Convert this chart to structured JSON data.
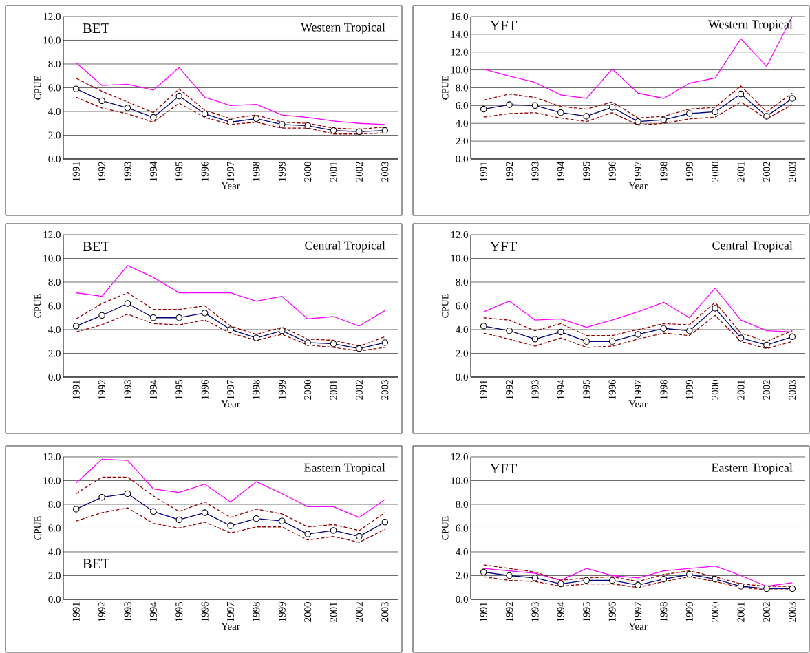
{
  "chart_data": [
    {
      "type": "line",
      "categories": [
        "1991",
        "1992",
        "1993",
        "1994",
        "1995",
        "1996",
        "1997",
        "1998",
        "1999",
        "2000",
        "2001",
        "2002",
        "2003"
      ],
      "xlabel": "Year",
      "ylabel": "CPUE",
      "ylim": [
        0,
        12
      ],
      "yticks": [
        {
          "value": 0,
          "label": "0.0"
        },
        {
          "value": 2,
          "label": "2.0"
        },
        {
          "value": 4,
          "label": "4.0"
        },
        {
          "value": 6,
          "label": "6.0"
        },
        {
          "value": 8,
          "label": "8.0"
        },
        {
          "value": 10,
          "label": "10.0"
        },
        {
          "value": 12,
          "label": "12.0"
        }
      ],
      "grid": "y",
      "annotations": [
        "BET",
        "Western Tropical"
      ],
      "series": [
        {
          "color": "#ff00ff",
          "line_style": "solid",
          "marker": "none",
          "values": [
            8.1,
            6.2,
            6.3,
            5.8,
            7.7,
            5.2,
            4.5,
            4.6,
            3.7,
            3.5,
            3.2,
            3.0,
            2.9
          ]
        },
        {
          "color": "#990000",
          "line_style": "dashed",
          "marker": "none",
          "values": [
            6.8,
            5.7,
            4.8,
            3.9,
            5.9,
            4.1,
            3.4,
            3.7,
            3.1,
            3.0,
            2.6,
            2.5,
            2.7
          ]
        },
        {
          "color": "#990000",
          "line_style": "dashed",
          "marker": "none",
          "values": [
            5.2,
            4.3,
            3.8,
            3.1,
            4.7,
            3.5,
            2.9,
            3.1,
            2.6,
            2.6,
            2.1,
            2.1,
            2.2
          ]
        },
        {
          "color": "#000080",
          "line_style": "solid",
          "marker": "circle",
          "values": [
            5.9,
            4.9,
            4.3,
            3.5,
            5.3,
            3.8,
            3.1,
            3.4,
            2.9,
            2.8,
            2.4,
            2.3,
            2.4
          ]
        }
      ]
    },
    {
      "type": "line",
      "categories": [
        "1991",
        "1992",
        "1993",
        "1994",
        "1995",
        "1996",
        "1997",
        "1998",
        "1999",
        "2000",
        "2001",
        "2002",
        "2003"
      ],
      "xlabel": "Year",
      "ylabel": "CPUE",
      "ylim": [
        0,
        16
      ],
      "yticks": [
        {
          "value": 0,
          "label": "0.0"
        },
        {
          "value": 2,
          "label": "2.0"
        },
        {
          "value": 4,
          "label": "4.0"
        },
        {
          "value": 6,
          "label": "6.0"
        },
        {
          "value": 8,
          "label": "8.0"
        },
        {
          "value": 10,
          "label": "10.0"
        },
        {
          "value": 12,
          "label": "12.0"
        },
        {
          "value": 14,
          "label": "14.0"
        },
        {
          "value": 16,
          "label": "16.0"
        }
      ],
      "grid": "y",
      "annotations": [
        "YFT",
        "Western Tropical"
      ],
      "series": [
        {
          "color": "#ff00ff",
          "line_style": "solid",
          "marker": "none",
          "values": [
            10.1,
            9.3,
            8.6,
            7.2,
            6.8,
            10.1,
            7.4,
            6.8,
            8.5,
            9.1,
            13.5,
            10.4,
            16.0
          ]
        },
        {
          "color": "#990000",
          "line_style": "dashed",
          "marker": "none",
          "values": [
            6.6,
            7.3,
            6.9,
            5.9,
            5.6,
            6.4,
            4.6,
            4.8,
            5.6,
            5.8,
            8.2,
            5.3,
            7.4
          ]
        },
        {
          "color": "#990000",
          "line_style": "dashed",
          "marker": "none",
          "values": [
            4.7,
            5.1,
            5.2,
            4.6,
            4.2,
            5.2,
            3.8,
            4.0,
            4.5,
            4.7,
            6.4,
            4.5,
            6.1
          ]
        },
        {
          "color": "#000080",
          "line_style": "solid",
          "marker": "circle",
          "values": [
            5.6,
            6.1,
            6.0,
            5.2,
            4.8,
            5.8,
            4.2,
            4.4,
            5.1,
            5.3,
            7.3,
            4.8,
            6.8
          ]
        }
      ]
    },
    {
      "type": "line",
      "categories": [
        "1991",
        "1992",
        "1993",
        "1994",
        "1995",
        "1996",
        "1997",
        "1998",
        "1999",
        "2000",
        "2001",
        "2002",
        "2003"
      ],
      "xlabel": "Year",
      "ylabel": "CPUE",
      "ylim": [
        0,
        12
      ],
      "yticks": [
        {
          "value": 0,
          "label": "0.0"
        },
        {
          "value": 2,
          "label": "2.0"
        },
        {
          "value": 4,
          "label": "4.0"
        },
        {
          "value": 6,
          "label": "6.0"
        },
        {
          "value": 8,
          "label": "8.0"
        },
        {
          "value": 10,
          "label": "10.0"
        },
        {
          "value": 12,
          "label": "12.0"
        }
      ],
      "grid": "y",
      "annotations": [
        "BET",
        "Central Tropical"
      ],
      "series": [
        {
          "color": "#ff00ff",
          "line_style": "solid",
          "marker": "none",
          "values": [
            7.1,
            6.8,
            9.4,
            8.4,
            7.1,
            7.1,
            7.1,
            6.4,
            6.8,
            4.9,
            5.1,
            4.3,
            5.6
          ]
        },
        {
          "color": "#990000",
          "line_style": "dashed",
          "marker": "none",
          "values": [
            4.9,
            6.2,
            7.1,
            5.7,
            5.7,
            6.0,
            4.3,
            3.6,
            4.2,
            3.2,
            3.1,
            2.6,
            3.4
          ]
        },
        {
          "color": "#990000",
          "line_style": "dashed",
          "marker": "none",
          "values": [
            3.8,
            4.4,
            5.3,
            4.5,
            4.4,
            4.8,
            3.7,
            3.1,
            3.6,
            2.7,
            2.5,
            2.2,
            2.5
          ]
        },
        {
          "color": "#000080",
          "line_style": "solid",
          "marker": "circle",
          "values": [
            4.3,
            5.2,
            6.2,
            5.0,
            5.0,
            5.4,
            4.0,
            3.3,
            3.9,
            2.9,
            2.8,
            2.4,
            2.9
          ]
        }
      ]
    },
    {
      "type": "line",
      "categories": [
        "1991",
        "1992",
        "1993",
        "1994",
        "1995",
        "1996",
        "1997",
        "1998",
        "1999",
        "2000",
        "2001",
        "2002",
        "2003"
      ],
      "xlabel": "Year",
      "ylabel": "CPUE",
      "ylim": [
        0,
        12
      ],
      "yticks": [
        {
          "value": 0,
          "label": "0.0"
        },
        {
          "value": 2,
          "label": "2.0"
        },
        {
          "value": 4,
          "label": "4.0"
        },
        {
          "value": 6,
          "label": "6.0"
        },
        {
          "value": 8,
          "label": "8.0"
        },
        {
          "value": 10,
          "label": "10.0"
        },
        {
          "value": 12,
          "label": "12.0"
        }
      ],
      "grid": "y",
      "annotations": [
        "YFT",
        "Central Tropical"
      ],
      "series": [
        {
          "color": "#ff00ff",
          "line_style": "solid",
          "marker": "none",
          "values": [
            5.5,
            6.4,
            4.8,
            4.9,
            4.2,
            4.8,
            5.5,
            6.3,
            5.0,
            7.5,
            4.8,
            3.9,
            3.8
          ]
        },
        {
          "color": "#990000",
          "line_style": "dashed",
          "marker": "none",
          "values": [
            5.0,
            4.8,
            3.9,
            4.5,
            3.5,
            3.5,
            4.0,
            4.5,
            4.4,
            6.3,
            3.7,
            3.0,
            3.9
          ]
        },
        {
          "color": "#990000",
          "line_style": "dashed",
          "marker": "none",
          "values": [
            3.7,
            3.2,
            2.6,
            3.3,
            2.5,
            2.6,
            3.2,
            3.7,
            3.5,
            5.2,
            3.0,
            2.4,
            3.0
          ]
        },
        {
          "color": "#000080",
          "line_style": "solid",
          "marker": "circle",
          "values": [
            4.3,
            3.9,
            3.2,
            3.8,
            3.0,
            3.0,
            3.6,
            4.1,
            3.9,
            5.8,
            3.3,
            2.7,
            3.4
          ]
        }
      ]
    },
    {
      "type": "line",
      "categories": [
        "1991",
        "1992",
        "1993",
        "1994",
        "1995",
        "1996",
        "1997",
        "1998",
        "1999",
        "2000",
        "2001",
        "2002",
        "2003"
      ],
      "xlabel": "Year",
      "ylabel": "CPUE",
      "ylim": [
        0,
        12
      ],
      "yticks": [
        {
          "value": 0,
          "label": "0.0"
        },
        {
          "value": 2,
          "label": "2.0"
        },
        {
          "value": 4,
          "label": "4.0"
        },
        {
          "value": 6,
          "label": "6.0"
        },
        {
          "value": 8,
          "label": "8.0"
        },
        {
          "value": 10,
          "label": "10.0"
        },
        {
          "value": 12,
          "label": "12.0"
        }
      ],
      "grid": "y",
      "annotations": [
        "BET",
        "Eastern Tropical"
      ],
      "series": [
        {
          "color": "#ff00ff",
          "line_style": "solid",
          "marker": "none",
          "values": [
            9.8,
            11.8,
            11.7,
            9.3,
            9.0,
            9.7,
            8.2,
            9.9,
            8.9,
            7.8,
            7.8,
            6.9,
            8.4
          ]
        },
        {
          "color": "#990000",
          "line_style": "dashed",
          "marker": "none",
          "values": [
            8.9,
            10.3,
            10.3,
            8.7,
            7.4,
            8.2,
            6.9,
            7.6,
            7.2,
            6.1,
            6.3,
            5.8,
            7.3
          ]
        },
        {
          "color": "#990000",
          "line_style": "dashed",
          "marker": "none",
          "values": [
            6.6,
            7.3,
            7.7,
            6.4,
            6.0,
            6.5,
            5.6,
            6.1,
            6.1,
            5.0,
            5.3,
            4.8,
            5.9
          ]
        },
        {
          "color": "#000080",
          "line_style": "solid",
          "marker": "circle",
          "values": [
            7.6,
            8.6,
            8.9,
            7.4,
            6.7,
            7.3,
            6.2,
            6.8,
            6.6,
            5.5,
            5.8,
            5.3,
            6.5
          ]
        }
      ]
    },
    {
      "type": "line",
      "categories": [
        "1991",
        "1992",
        "1993",
        "1994",
        "1995",
        "1996",
        "1997",
        "1998",
        "1999",
        "2000",
        "2001",
        "2002",
        "2003"
      ],
      "xlabel": "Year",
      "ylabel": "CPUE",
      "ylim": [
        0,
        12
      ],
      "yticks": [
        {
          "value": 0,
          "label": "0.0"
        },
        {
          "value": 2,
          "label": "2.0"
        },
        {
          "value": 4,
          "label": "4.0"
        },
        {
          "value": 6,
          "label": "6.0"
        },
        {
          "value": 8,
          "label": "8.0"
        },
        {
          "value": 10,
          "label": "10.0"
        },
        {
          "value": 12,
          "label": "12.0"
        }
      ],
      "grid": "y",
      "annotations": [
        "YFT",
        "Eastern Tropical"
      ],
      "series": [
        {
          "color": "#ff00ff",
          "line_style": "solid",
          "marker": "none",
          "values": [
            2.6,
            2.4,
            2.2,
            1.6,
            2.6,
            2.0,
            1.8,
            2.4,
            2.6,
            2.8,
            2.0,
            1.1,
            1.4
          ]
        },
        {
          "color": "#990000",
          "line_style": "dashed",
          "marker": "none",
          "values": [
            2.9,
            2.6,
            2.3,
            1.6,
            1.8,
            1.9,
            1.5,
            2.1,
            2.4,
            1.9,
            1.3,
            1.1,
            1.1
          ]
        },
        {
          "color": "#990000",
          "line_style": "dashed",
          "marker": "none",
          "values": [
            1.9,
            1.6,
            1.5,
            1.1,
            1.3,
            1.3,
            1.0,
            1.5,
            1.9,
            1.5,
            1.0,
            0.8,
            0.8
          ]
        },
        {
          "color": "#000080",
          "line_style": "solid",
          "marker": "circle",
          "values": [
            2.3,
            2.0,
            1.8,
            1.3,
            1.6,
            1.6,
            1.2,
            1.7,
            2.1,
            1.7,
            1.1,
            0.9,
            0.9
          ]
        }
      ]
    }
  ]
}
